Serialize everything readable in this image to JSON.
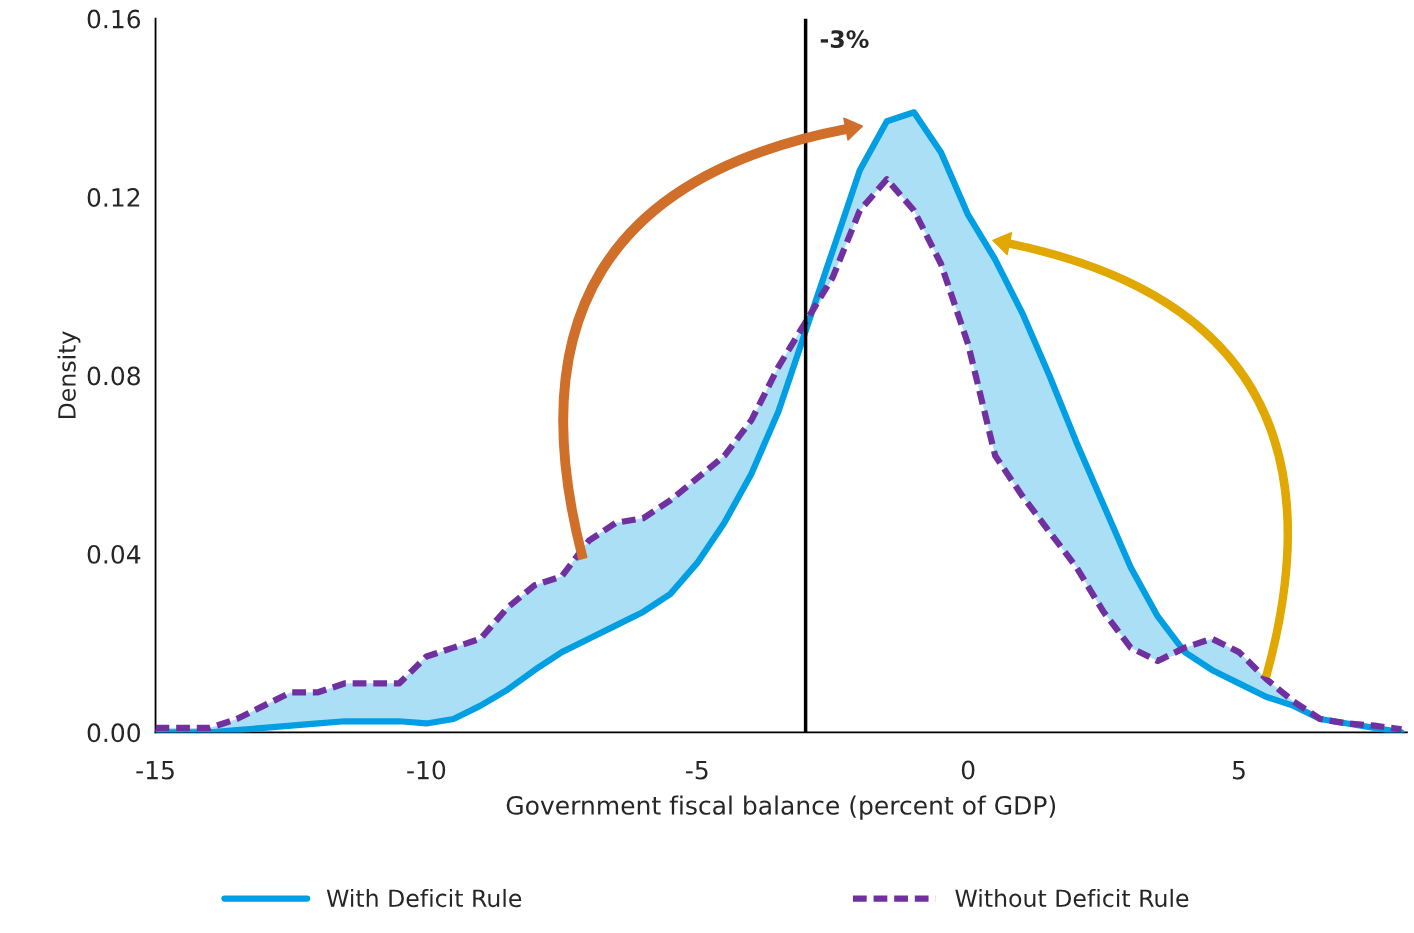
{
  "chart_data": {
    "type": "line",
    "xlabel": "Government fiscal balance (percent of GDP)",
    "ylabel": "Density",
    "x": [
      -15,
      -14.5,
      -14,
      -13.5,
      -13,
      -12.5,
      -12,
      -11.5,
      -11,
      -10.5,
      -10,
      -9.5,
      -9,
      -8.5,
      -8,
      -7.5,
      -7,
      -6.5,
      -6,
      -5.5,
      -5,
      -4.5,
      -4,
      -3.5,
      -3,
      -2.5,
      -2,
      -1.5,
      -1,
      -0.5,
      0,
      0.5,
      1,
      1.5,
      2,
      2.5,
      3,
      3.5,
      4,
      4.5,
      5,
      5.5,
      6,
      6.5,
      7,
      7.5,
      8
    ],
    "series": [
      {
        "name": "With Deficit Rule",
        "color": "#009fe3",
        "line_style": "solid",
        "values": [
          0,
          0,
          0,
          0.0005,
          0.001,
          0.0015,
          0.002,
          0.0025,
          0.0025,
          0.0025,
          0.002,
          0.003,
          0.006,
          0.0096,
          0.014,
          0.018,
          0.021,
          0.024,
          0.027,
          0.031,
          0.038,
          0.047,
          0.058,
          0.072,
          0.09,
          0.108,
          0.126,
          0.137,
          0.139,
          0.13,
          0.116,
          0.106,
          0.094,
          0.08,
          0.065,
          0.051,
          0.037,
          0.026,
          0.018,
          0.014,
          0.011,
          0.008,
          0.006,
          0.003,
          0.002,
          0.001,
          0
        ],
        "lower": [
          0,
          0,
          0,
          0.0005,
          0.001,
          0.0015,
          0.002,
          0.0025,
          0.0025,
          0.0025,
          0.002,
          0.003,
          0.006,
          0.0096,
          0.014,
          0.018,
          0.021,
          0.024,
          0.027,
          0.031,
          0.038,
          0.047,
          0.058,
          0.072,
          0.09,
          0.102,
          0.117,
          0.124,
          0.117,
          0.105,
          0.087,
          0.062,
          0.053,
          0.045,
          0.037,
          0.027,
          0.019,
          0.016,
          0.018,
          0.014,
          0.011,
          0.008,
          0.006,
          0.003,
          0.002,
          0.001,
          0
        ],
        "upper": [
          0.001,
          0.001,
          0.001,
          0.003,
          0.006,
          0.009,
          0.009,
          0.011,
          0.011,
          0.011,
          0.017,
          0.019,
          0.021,
          0.028,
          0.033,
          0.035,
          0.043,
          0.047,
          0.048,
          0.052,
          0.057,
          0.062,
          0.07,
          0.082,
          0.092,
          0.108,
          0.126,
          0.137,
          0.139,
          0.13,
          0.116,
          0.106,
          0.094,
          0.08,
          0.065,
          0.051,
          0.037,
          0.026,
          0.019,
          0.021,
          0.018,
          0.012,
          0.007,
          0.003,
          0.002,
          0.0015,
          0.0007
        ]
      },
      {
        "name": "Without Deficit Rule",
        "color": "#7030a0",
        "line_style": "dashed",
        "values": [
          0.001,
          0.001,
          0.001,
          0.003,
          0.006,
          0.009,
          0.009,
          0.011,
          0.011,
          0.011,
          0.017,
          0.019,
          0.021,
          0.028,
          0.033,
          0.035,
          0.043,
          0.047,
          0.048,
          0.052,
          0.057,
          0.062,
          0.07,
          0.082,
          0.092,
          0.102,
          0.117,
          0.124,
          0.117,
          0.105,
          0.087,
          0.062,
          0.053,
          0.045,
          0.037,
          0.027,
          0.019,
          0.016,
          0.019,
          0.021,
          0.018,
          0.012,
          0.007,
          0.003,
          0.002,
          0.0015,
          0.0007
        ]
      }
    ],
    "xlim": [
      -15,
      8.1
    ],
    "xticks": [
      -15,
      -10,
      -5,
      0,
      5
    ],
    "ylim": [
      0,
      0.16
    ],
    "yticks": [
      {
        "value": 0,
        "label": "0.00"
      },
      {
        "value": 0.04,
        "label": "0.04"
      },
      {
        "value": 0.08,
        "label": "0.08"
      },
      {
        "value": 0.12,
        "label": "0.12"
      },
      {
        "value": 0.16,
        "label": "0.16"
      }
    ],
    "ref_lines": [
      {
        "axis": "x",
        "value": -3,
        "label": "-3%",
        "color": "#000000",
        "line_style": "solid"
      }
    ],
    "grid": false,
    "legend": "bottom",
    "marker": "none"
  }
}
